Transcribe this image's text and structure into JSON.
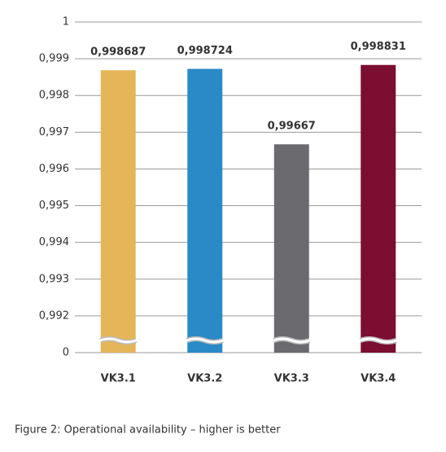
{
  "chart_data": {
    "type": "bar",
    "caption": "Figure 2: Operational availability – higher is better",
    "categories": [
      "VK3.1",
      "VK3.2",
      "VK3.3",
      "VK3.4"
    ],
    "values": [
      0.998687,
      0.998724,
      0.99667,
      0.998831
    ],
    "value_labels": [
      "0,998687",
      "0,998724",
      "0,99667",
      "0,998831"
    ],
    "colors": [
      "#e5b55a",
      "#2a8ac8",
      "#6b6a6e",
      "#7b0e31"
    ],
    "ylim": [
      0,
      1
    ],
    "yticks": [
      0,
      {
        "value": 0.992,
        "label": "0,992"
      },
      {
        "value": 0.993,
        "label": "0,993"
      },
      {
        "value": 0.994,
        "label": "0,994"
      },
      {
        "value": 0.995,
        "label": "0,995"
      },
      {
        "value": 0.996,
        "label": "0,996"
      },
      {
        "value": 0.997,
        "label": "0,997"
      },
      {
        "value": 0.998,
        "label": "0,998"
      },
      {
        "value": 0.999,
        "label": "0,999"
      },
      1
    ],
    "axis_break": true,
    "grid": true
  }
}
